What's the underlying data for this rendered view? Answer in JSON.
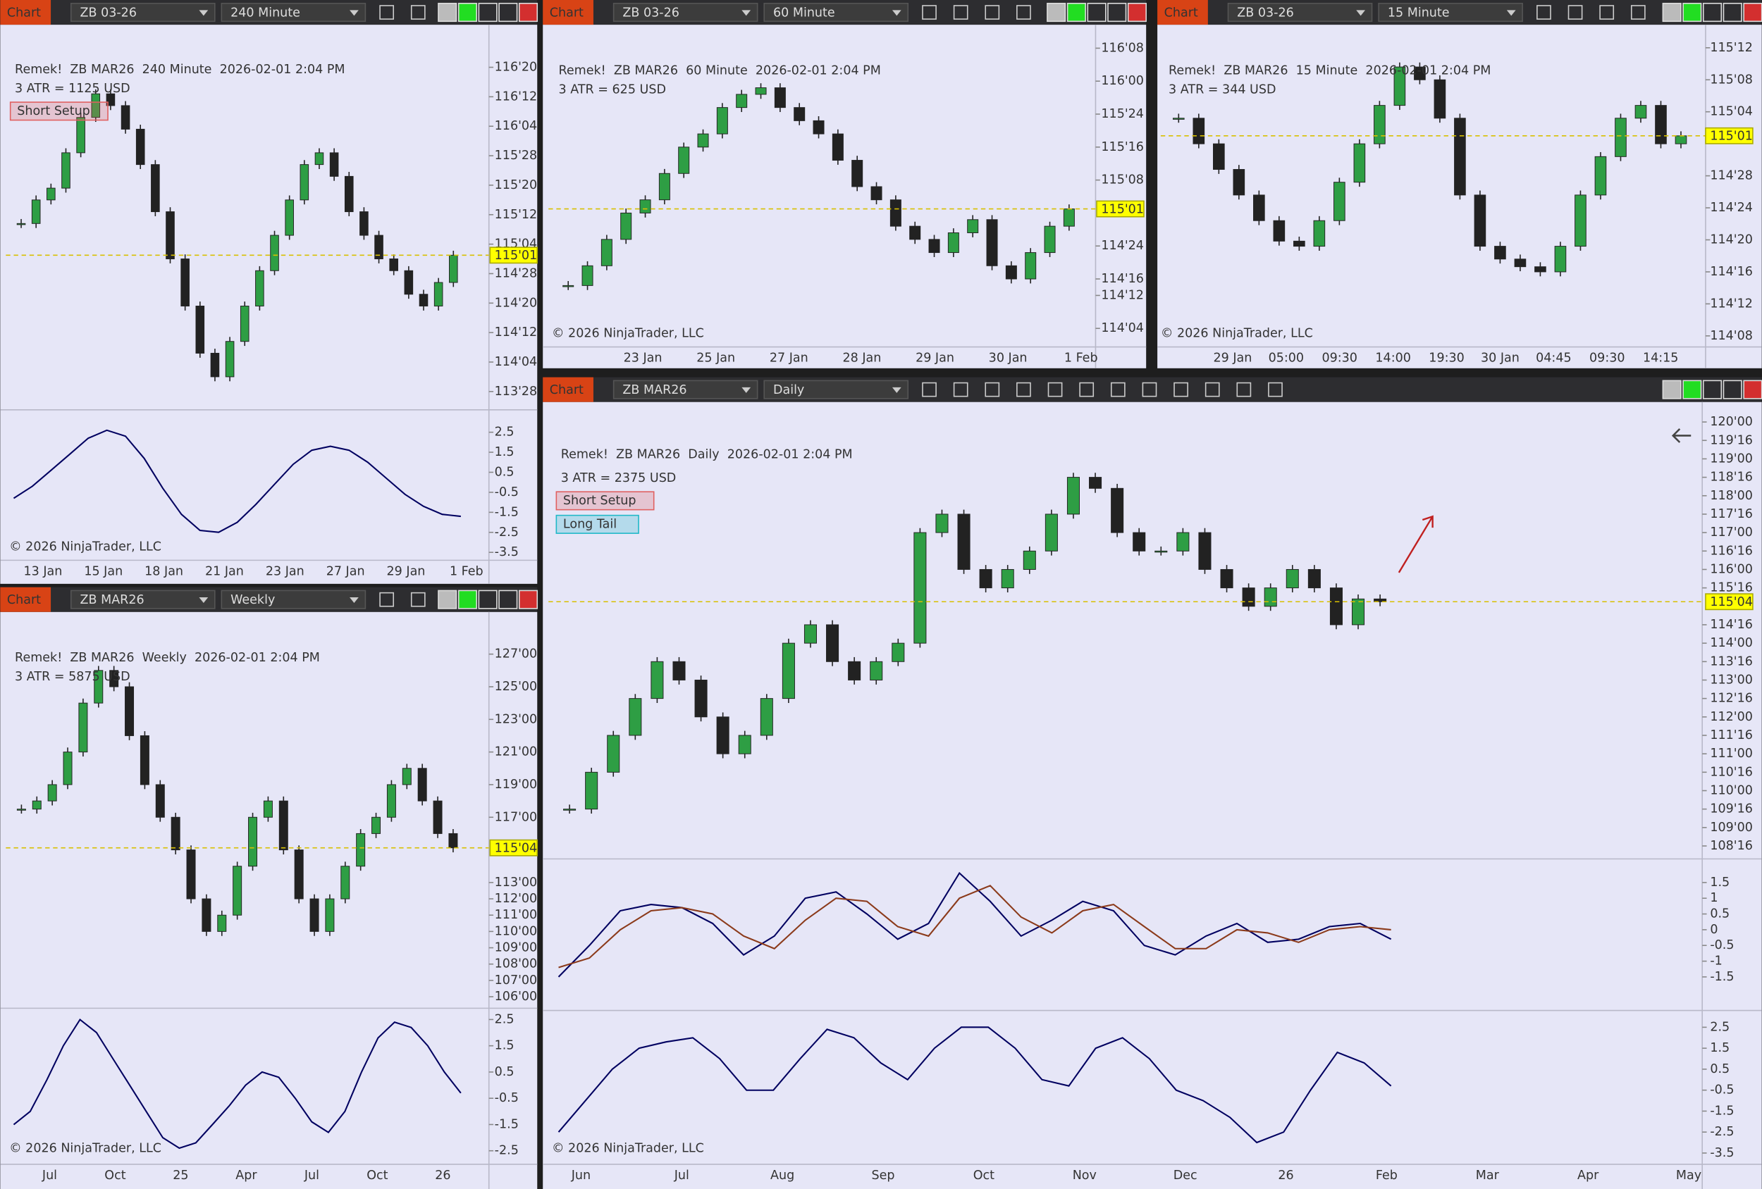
{
  "windows": [
    {
      "label": "Chart",
      "instrument": "ZB 03-26",
      "period": "240 Minute",
      "header": "Remek!  ZB MAR26  240 Minute  2026-02-01 2:04 PM",
      "atr": "3 ATR = 1125 USD",
      "tags": [
        {
          "text": "Short Setup",
          "color": "#e06060"
        }
      ],
      "copyright": "© 2026 NinjaTrader, LLC",
      "price": {
        "ylim": [
          113.72,
          116.91
        ],
        "yticks": [
          {
            "value": 116.625,
            "label": "116'20"
          },
          {
            "value": 116.375,
            "label": "116'12"
          },
          {
            "value": 116.125,
            "label": "116'04"
          },
          {
            "value": 115.875,
            "label": "115'28"
          },
          {
            "value": 115.625,
            "label": "115'20"
          },
          {
            "value": 115.375,
            "label": "115'12"
          },
          {
            "value": 115.125,
            "label": "115'04"
          },
          {
            "value": 114.875,
            "label": "114'28"
          },
          {
            "value": 114.625,
            "label": "114'20"
          },
          {
            "value": 114.375,
            "label": "114'12"
          },
          {
            "value": 114.125,
            "label": "114'04"
          },
          {
            "value": 113.875,
            "label": "113'28"
          }
        ],
        "closes": [
          115.3,
          115.5,
          115.6,
          115.9,
          116.2,
          116.4,
          116.3,
          116.1,
          115.8,
          115.4,
          115.0,
          114.6,
          114.2,
          114.0,
          114.3,
          114.6,
          114.9,
          115.2,
          115.5,
          115.8,
          115.9,
          115.7,
          115.4,
          115.2,
          115.0,
          114.9,
          114.7,
          114.6,
          114.8,
          115.03125
        ],
        "last": {
          "value": 115.03125,
          "label": "115'01"
        }
      },
      "oscillators": [
        {
          "ylim": [
            -3.95,
            3.62
          ],
          "yticks": [
            2.5,
            1.5,
            0.5,
            -0.5,
            -1.5,
            -2.5,
            -3.5
          ],
          "series": [
            {
              "color": "#000060",
              "values": [
                -0.8,
                -0.2,
                0.6,
                1.4,
                2.2,
                2.6,
                2.3,
                1.2,
                -0.3,
                -1.6,
                -2.4,
                -2.5,
                -2.0,
                -1.1,
                -0.1,
                0.9,
                1.6,
                1.8,
                1.6,
                1.0,
                0.2,
                -0.6,
                -1.2,
                -1.6,
                -1.7
              ]
            }
          ]
        }
      ],
      "xlabels": [
        "13 Jan",
        "15 Jan",
        "18 Jan",
        "21 Jan",
        "23 Jan",
        "27 Jan",
        "29 Jan",
        "1 Feb"
      ]
    },
    {
      "label": "Chart",
      "instrument": "ZB 03-26",
      "period": "60 Minute",
      "header": "Remek!  ZB MAR26  60 Minute  2026-02-01 2:04 PM",
      "atr": "3 ATR = 625 USD",
      "tags": [],
      "copyright": "© 2026 NinjaTrader, LLC",
      "price": {
        "ylim": [
          114.01,
          116.36
        ],
        "yticks": [
          {
            "value": 116.25,
            "label": "116'08"
          },
          {
            "value": 116.0,
            "label": "116'00"
          },
          {
            "value": 115.75,
            "label": "115'24"
          },
          {
            "value": 115.5,
            "label": "115'16"
          },
          {
            "value": 115.25,
            "label": "115'08"
          },
          {
            "value": 114.75,
            "label": "114'24"
          },
          {
            "value": 114.5,
            "label": "114'16"
          },
          {
            "value": 114.375,
            "label": "114'12"
          },
          {
            "value": 114.125,
            "label": "114'04"
          }
        ],
        "closes": [
          114.45,
          114.6,
          114.8,
          115.0,
          115.1,
          115.3,
          115.5,
          115.6,
          115.8,
          115.9,
          115.95,
          115.8,
          115.7,
          115.6,
          115.4,
          115.2,
          115.1,
          114.9,
          114.8,
          114.7,
          114.85,
          114.95,
          114.6,
          114.5,
          114.7,
          114.9,
          115.03125
        ],
        "last": {
          "value": 115.03125,
          "label": "115'01"
        }
      },
      "oscillators": [],
      "xlabels": [
        "23 Jan",
        "25 Jan",
        "27 Jan",
        "28 Jan",
        "29 Jan",
        "30 Jan",
        "1 Feb"
      ]
    },
    {
      "label": "Chart",
      "instrument": "ZB 03-26",
      "period": "15 Minute",
      "header": "Remek!  ZB MAR26  15 Minute  2026-02-01 2:04 PM",
      "atr": "3 ATR = 344 USD",
      "tags": [],
      "copyright": "© 2026 NinjaTrader, LLC",
      "price": {
        "ylim": [
          114.22,
          115.43
        ],
        "yticks": [
          {
            "value": 115.375,
            "label": "115'12"
          },
          {
            "value": 115.25,
            "label": "115'08"
          },
          {
            "value": 115.125,
            "label": "115'04"
          },
          {
            "value": 114.875,
            "label": "114'28"
          },
          {
            "value": 114.75,
            "label": "114'24"
          },
          {
            "value": 114.625,
            "label": "114'20"
          },
          {
            "value": 114.5,
            "label": "114'16"
          },
          {
            "value": 114.375,
            "label": "114'12"
          },
          {
            "value": 114.25,
            "label": "114'08"
          }
        ],
        "closes": [
          115.1,
          115.0,
          114.9,
          114.8,
          114.7,
          114.62,
          114.6,
          114.7,
          114.85,
          115.0,
          115.15,
          115.3,
          115.25,
          115.1,
          114.8,
          114.6,
          114.55,
          114.52,
          114.5,
          114.6,
          114.8,
          114.95,
          115.1,
          115.15,
          115.0,
          115.03125
        ],
        "last": {
          "value": 115.03125,
          "label": "115'01"
        }
      },
      "oscillators": [],
      "xlabels": [
        "29 Jan",
        "05:00",
        "09:30",
        "14:00",
        "19:30",
        "30 Jan",
        "04:45",
        "09:30",
        "14:15"
      ]
    },
    {
      "label": "Chart",
      "instrument": "ZB MAR26",
      "period": "Weekly",
      "header": "Remek!  ZB MAR26  Weekly  2026-02-01 2:04 PM",
      "atr": "3 ATR = 5875 USD",
      "tags": [],
      "copyright": "© 2026 NinjaTrader, LLC",
      "price": {
        "ylim": [
          105.5,
          128.9
        ],
        "yticks": [
          {
            "value": 127,
            "label": "127'00"
          },
          {
            "value": 125,
            "label": "125'00"
          },
          {
            "value": 123,
            "label": "123'00"
          },
          {
            "value": 121,
            "label": "121'00"
          },
          {
            "value": 119,
            "label": "119'00"
          },
          {
            "value": 117,
            "label": "117'00"
          },
          {
            "value": 113,
            "label": "113'00"
          },
          {
            "value": 112,
            "label": "112'00"
          },
          {
            "value": 111,
            "label": "111'00"
          },
          {
            "value": 110,
            "label": "110'00"
          },
          {
            "value": 109,
            "label": "109'00"
          },
          {
            "value": 108,
            "label": "108'00"
          },
          {
            "value": 107,
            "label": "107'00"
          },
          {
            "value": 106,
            "label": "106'00"
          }
        ],
        "closes": [
          117.5,
          118,
          119,
          121,
          124,
          126,
          125,
          122,
          119,
          117,
          115,
          112,
          110,
          111,
          114,
          117,
          118,
          115,
          112,
          110,
          112,
          114,
          116,
          117,
          119,
          120,
          118,
          116,
          115.125
        ],
        "last": {
          "value": 115.125,
          "label": "115'04"
        }
      },
      "oscillators": [
        {
          "ylim": [
            -2.93,
            2.93
          ],
          "yticks": [
            2.5,
            1.5,
            0.5,
            -0.5,
            -1.5,
            -2.5
          ],
          "series": [
            {
              "color": "#000060",
              "values": [
                -1.5,
                -1.0,
                0.2,
                1.5,
                2.5,
                2.0,
                1.0,
                0.0,
                -1.0,
                -2.0,
                -2.4,
                -2.2,
                -1.5,
                -0.8,
                0.0,
                0.5,
                0.3,
                -0.5,
                -1.4,
                -1.8,
                -1.0,
                0.5,
                1.8,
                2.4,
                2.2,
                1.5,
                0.5,
                -0.3
              ]
            }
          ]
        }
      ],
      "xlabels": [
        "Jul",
        "Oct",
        "25",
        "Apr",
        "Jul",
        "Oct",
        "26"
      ]
    },
    {
      "label": "Chart",
      "instrument": "ZB MAR26",
      "period": "Daily",
      "header": "Remek!  ZB MAR26  Daily  2026-02-01 2:04 PM",
      "atr": "3 ATR = 2375 USD",
      "tags": [
        {
          "text": "Short Setup",
          "color": "#e06060"
        },
        {
          "text": "Long Tail",
          "color": "#20b8c8"
        }
      ],
      "copyright": "© 2026 NinjaTrader, LLC",
      "price": {
        "ylim": [
          108.24,
          120.3
        ],
        "yticks": [
          {
            "value": 120,
            "label": "120'00"
          },
          {
            "value": 119.5,
            "label": "119'16"
          },
          {
            "value": 119,
            "label": "119'00"
          },
          {
            "value": 118.5,
            "label": "118'16"
          },
          {
            "value": 118,
            "label": "118'00"
          },
          {
            "value": 117.5,
            "label": "117'16"
          },
          {
            "value": 117,
            "label": "117'00"
          },
          {
            "value": 116.5,
            "label": "116'16"
          },
          {
            "value": 116,
            "label": "116'00"
          },
          {
            "value": 115.5,
            "label": "115'16"
          },
          {
            "value": 114.5,
            "label": "114'16"
          },
          {
            "value": 114,
            "label": "114'00"
          },
          {
            "value": 113.5,
            "label": "113'16"
          },
          {
            "value": 113,
            "label": "113'00"
          },
          {
            "value": 112.5,
            "label": "112'16"
          },
          {
            "value": 112,
            "label": "112'00"
          },
          {
            "value": 111.5,
            "label": "111'16"
          },
          {
            "value": 111,
            "label": "111'00"
          },
          {
            "value": 110.5,
            "label": "110'16"
          },
          {
            "value": 110,
            "label": "110'00"
          },
          {
            "value": 109.5,
            "label": "109'16"
          },
          {
            "value": 109,
            "label": "109'00"
          },
          {
            "value": 108.5,
            "label": "108'16"
          }
        ],
        "closes": [
          109.5,
          110.5,
          111.5,
          112.5,
          113.5,
          113,
          112,
          111,
          111.5,
          112.5,
          114,
          114.5,
          113.5,
          113,
          113.5,
          114,
          117,
          117.5,
          116,
          115.5,
          116,
          116.5,
          117.5,
          118.5,
          118.2,
          117,
          116.5,
          116.5,
          117,
          116,
          115.5,
          115,
          115.5,
          116,
          115.5,
          114.5,
          115.2,
          115.125
        ],
        "last": {
          "value": 115.125,
          "label": "115'04"
        }
      },
      "oscillators": [
        {
          "ylim": [
            -2.46,
            2.25
          ],
          "yticks": [
            1.5,
            1,
            0.5,
            0,
            -0.5,
            -1,
            -1.5
          ],
          "series": [
            {
              "color": "#000060",
              "values": [
                -1.5,
                -0.5,
                0.6,
                0.8,
                0.7,
                0.2,
                -0.8,
                -0.2,
                1.0,
                1.2,
                0.5,
                -0.3,
                0.2,
                1.8,
                0.9,
                -0.2,
                0.3,
                0.9,
                0.6,
                -0.5,
                -0.8,
                -0.2,
                0.2,
                -0.4,
                -0.3,
                0.1,
                0.2,
                -0.3
              ]
            },
            {
              "color": "#8b3a1a",
              "values": [
                -1.2,
                -0.9,
                0.0,
                0.6,
                0.7,
                0.5,
                -0.2,
                -0.6,
                0.3,
                1.0,
                0.9,
                0.1,
                -0.2,
                1.0,
                1.4,
                0.4,
                -0.1,
                0.6,
                0.8,
                0.1,
                -0.6,
                -0.6,
                0.0,
                -0.1,
                -0.4,
                0.0,
                0.1,
                0.0
              ]
            }
          ]
        },
        {
          "ylim": [
            -3.93,
            3.3
          ],
          "yticks": [
            2.5,
            1.5,
            0.5,
            -0.5,
            -1.5,
            -2.5,
            -3.5
          ],
          "series": [
            {
              "color": "#000060",
              "values": [
                -2.5,
                -1.0,
                0.5,
                1.5,
                1.8,
                2.0,
                1.0,
                -0.5,
                -0.5,
                1.0,
                2.4,
                2.0,
                0.8,
                0.0,
                1.5,
                2.5,
                2.5,
                1.5,
                0.0,
                -0.3,
                1.5,
                2.0,
                1.0,
                -0.5,
                -1.0,
                -1.8,
                -3.0,
                -2.5,
                -0.5,
                1.3,
                0.8,
                -0.3
              ]
            }
          ]
        }
      ],
      "xlabels": [
        "Jun",
        "Jul",
        "Aug",
        "Sep",
        "Oct",
        "Nov",
        "Dec",
        "26",
        "Feb",
        "Mar",
        "Apr",
        "May"
      ]
    }
  ]
}
